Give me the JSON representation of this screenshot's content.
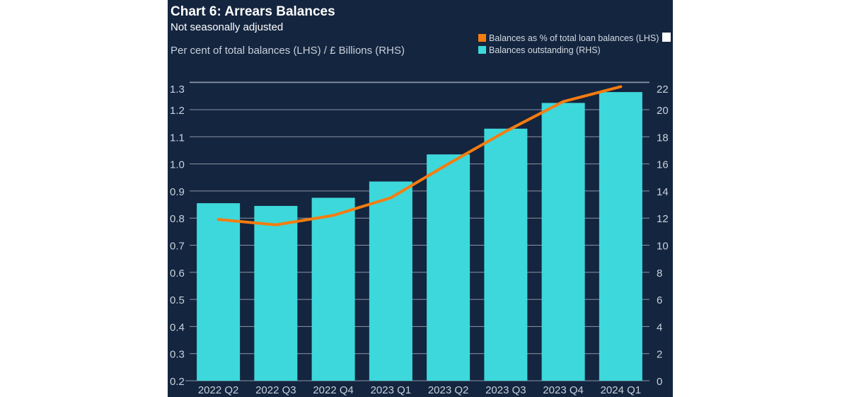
{
  "chart_data": {
    "type": "bar",
    "title": "Chart 6: Arrears Balances",
    "subtitle": "Not seasonally adjusted",
    "units_label": "Per cent of total balances (LHS) / £ Billions (RHS)",
    "categories": [
      "2022 Q2",
      "2022 Q3",
      "2022 Q4",
      "2023 Q1",
      "2023 Q2",
      "2023 Q3",
      "2023 Q4",
      "2024 Q1"
    ],
    "series": [
      {
        "name": "Balances outstanding (RHS)",
        "type": "bar",
        "axis": "right",
        "color": "#3dd8db",
        "values": [
          13.1,
          12.9,
          13.5,
          14.7,
          16.7,
          18.6,
          20.5,
          21.3
        ]
      },
      {
        "name": "Balances as % of total loan balances (LHS)",
        "type": "line",
        "axis": "left",
        "color": "#f57c0f",
        "values": [
          0.795,
          0.775,
          0.81,
          0.875,
          1.0,
          1.12,
          1.23,
          1.285
        ]
      }
    ],
    "y_left": {
      "ticks": [
        "0.2",
        "0.3",
        "0.4",
        "0.5",
        "0.6",
        "0.7",
        "0.8",
        "0.9",
        "1.0",
        "1.1",
        "1.2",
        "1.3"
      ],
      "ylim": [
        0.2,
        1.3
      ]
    },
    "y_right": {
      "ticks": [
        "0",
        "2",
        "4",
        "6",
        "8",
        "10",
        "12",
        "14",
        "16",
        "18",
        "20",
        "22"
      ],
      "ylim": [
        0,
        22
      ]
    },
    "grid": true,
    "legend_position": "top-right"
  },
  "legend": [
    {
      "label": "Balances as % of total loan balances (LHS)",
      "color": "#f57c0f"
    },
    {
      "label": "Balances outstanding (RHS)",
      "color": "#3dd8db"
    }
  ]
}
